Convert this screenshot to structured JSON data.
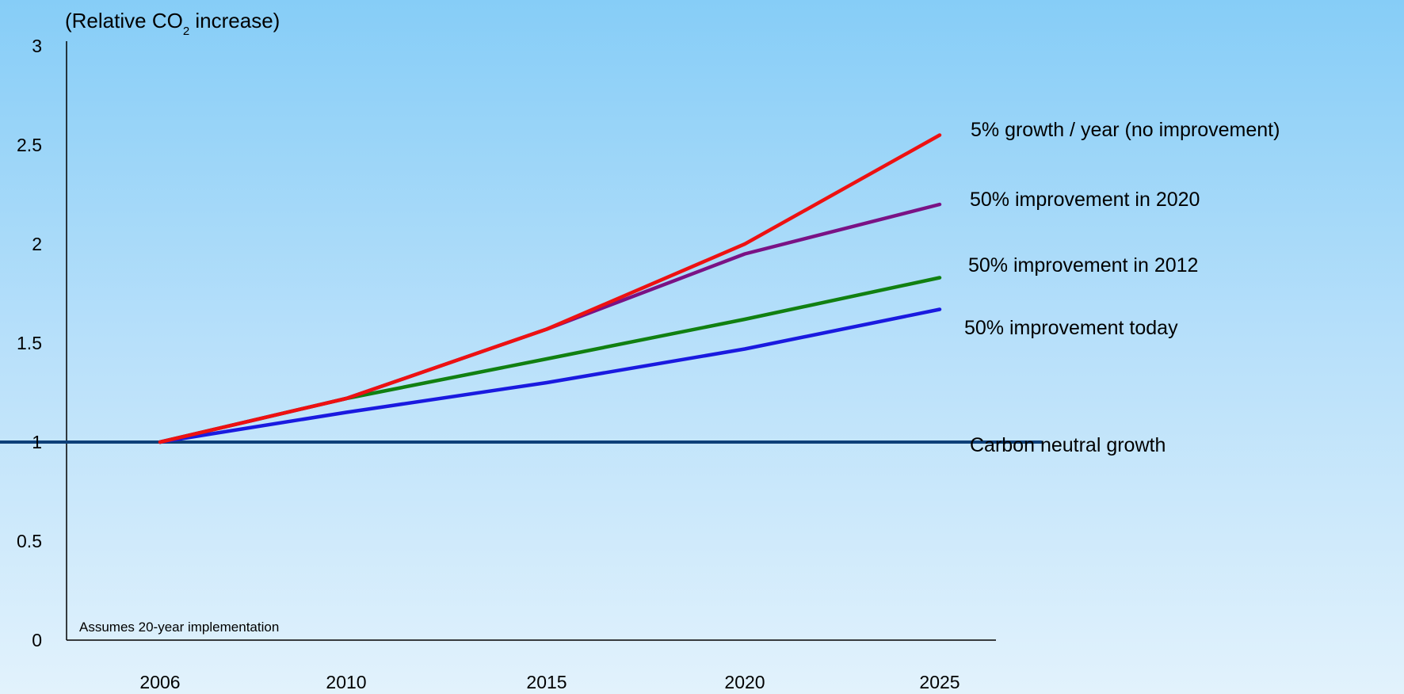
{
  "chart_data": {
    "type": "line",
    "ylabel_main": "(Relative CO",
    "ylabel_sub": "2",
    "ylabel_tail": " increase)",
    "x": [
      2006,
      2010,
      2015,
      2020,
      2025
    ],
    "ylim": [
      0,
      3
    ],
    "yticks": [
      "0",
      "0.5",
      "1",
      "1.5",
      "2",
      "2.5",
      "3"
    ],
    "xticks": [
      "2006",
      "2010",
      "2015",
      "2020",
      "2025"
    ],
    "note": "Assumes 20-year implementation",
    "series": [
      {
        "name": "Carbon neutral growth",
        "color": "#0d3f78",
        "x": [
          2002.1,
          2027.6
        ],
        "values": [
          1.0,
          1.0
        ]
      },
      {
        "name": "50% improvement today",
        "color": "#1a1ae0",
        "x": [
          2006,
          2010,
          2015,
          2020,
          2025
        ],
        "values": [
          1.0,
          1.15,
          1.3,
          1.47,
          1.67
        ]
      },
      {
        "name": "50% improvement in 2012",
        "color": "#118011",
        "x": [
          2006,
          2010,
          2015,
          2020,
          2025
        ],
        "values": [
          1.0,
          1.22,
          1.42,
          1.62,
          1.83
        ]
      },
      {
        "name": "50% improvement  in 2020",
        "color": "#7a1285",
        "x": [
          2006,
          2010,
          2015,
          2020,
          2025
        ],
        "values": [
          1.0,
          1.22,
          1.57,
          1.95,
          2.2
        ]
      },
      {
        "name": "5% growth / year (no improvement)",
        "color": "#ee1111",
        "x": [
          2006,
          2010,
          2015,
          2020,
          2025
        ],
        "values": [
          1.0,
          1.22,
          1.57,
          2.0,
          2.55
        ]
      }
    ]
  }
}
